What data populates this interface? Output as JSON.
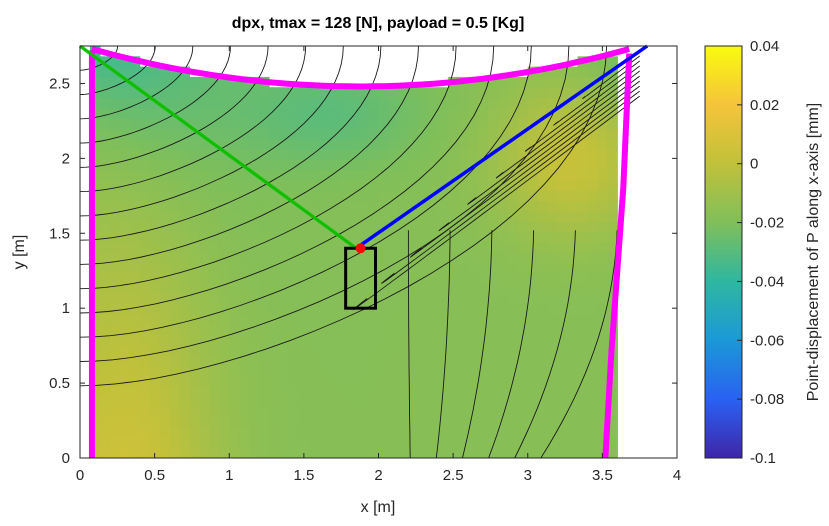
{
  "chart_data": {
    "type": "heatmap",
    "title": "dpx, tmax = 128 [N], payload = 0.5 [Kg]",
    "xlabel": "x [m]",
    "ylabel": "y [m]",
    "xlim": [
      0,
      4
    ],
    "ylim": [
      0,
      2.75
    ],
    "xticks": [
      "0",
      "0.5",
      "1",
      "1.5",
      "2",
      "2.5",
      "3",
      "3.5",
      "4"
    ],
    "yticks": [
      "0",
      "0.5",
      "1",
      "1.5",
      "2",
      "2.5"
    ],
    "grid": false,
    "colorbar": {
      "label": "Point-displacement of P along x-axis [mm]",
      "range": [
        -0.1,
        0.04
      ],
      "ticks": [
        "0.04",
        "0.02",
        "0",
        "-0.02",
        "-0.04",
        "-0.06",
        "-0.08",
        "-0.1"
      ],
      "colormap": "parula"
    },
    "cables": [
      {
        "color": "#ff0000",
        "from": [
          0,
          2.75
        ],
        "to": [
          1.85,
          1.4
        ]
      },
      {
        "color": "#00cc00",
        "from": [
          0,
          2.75
        ],
        "to": [
          1.85,
          1.4
        ]
      },
      {
        "color": "#0000ff",
        "from": [
          1.85,
          1.4
        ],
        "to": [
          3.8,
          2.75
        ]
      }
    ],
    "payload_point": [
      1.88,
      1.4
    ],
    "payload_box": {
      "x": [
        1.78,
        1.98
      ],
      "y": [
        1.0,
        1.4
      ]
    },
    "workspace_boundary_color": "#ff00ff",
    "workspace_boundary": {
      "left_x": [
        0.08,
        0.12
      ],
      "right_x": [
        3.52,
        3.68
      ],
      "top_y_center": 2.48,
      "top_y_ends": 2.73
    }
  }
}
